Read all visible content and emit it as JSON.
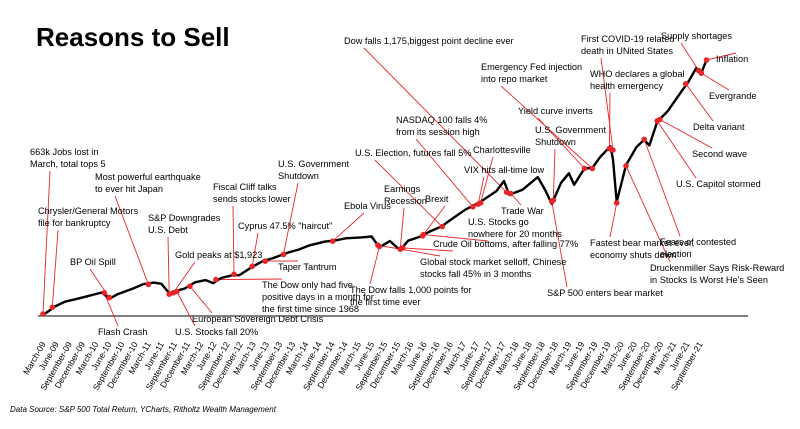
{
  "chart_data": {
    "type": "line",
    "title": "Reasons to Sell",
    "source": "Data Source: S&P 500 Total Return, YCharts, Ritholtz Wealth Management",
    "xlabel": "",
    "ylabel": "",
    "grid": false,
    "legend": "none",
    "line_color": "#000000",
    "marker_color": "#e8262a",
    "x_ticks": [
      "March-09",
      "June-09",
      "September-09",
      "December-09",
      "March-10",
      "June-10",
      "September-10",
      "December-10",
      "March-11",
      "June-11",
      "September-11",
      "December-11",
      "March-12",
      "June-12",
      "September-12",
      "December-12",
      "March-13",
      "June-13",
      "September-13",
      "December-13",
      "March-14",
      "June-14",
      "September-14",
      "December-14",
      "March-15",
      "June-15",
      "September-15",
      "December-15",
      "March-16",
      "June-16",
      "September-16",
      "December-16",
      "March-17",
      "June-17",
      "September-17",
      "December-17",
      "March-18",
      "June-18",
      "September-18",
      "December-18",
      "March-19",
      "June-19",
      "September-19",
      "December-19",
      "March-20",
      "June-20",
      "September-20",
      "December-20",
      "March-21",
      "June-21",
      "September-21"
    ],
    "series": [
      {
        "values": [
          [
            2009.2,
            1.0
          ],
          [
            2009.4,
            1.3
          ],
          [
            2009.6,
            1.5
          ],
          [
            2009.8,
            1.6
          ],
          [
            2010.0,
            1.7
          ],
          [
            2010.3,
            1.85
          ],
          [
            2010.45,
            1.6
          ],
          [
            2010.6,
            1.75
          ],
          [
            2010.9,
            1.95
          ],
          [
            2011.1,
            2.1
          ],
          [
            2011.3,
            2.15
          ],
          [
            2011.45,
            2.1
          ],
          [
            2011.6,
            1.75
          ],
          [
            2011.75,
            1.85
          ],
          [
            2011.9,
            1.95
          ],
          [
            2012.1,
            2.2
          ],
          [
            2012.3,
            2.3
          ],
          [
            2012.45,
            2.2
          ],
          [
            2012.6,
            2.4
          ],
          [
            2012.8,
            2.5
          ],
          [
            2012.95,
            2.5
          ],
          [
            2013.2,
            2.8
          ],
          [
            2013.4,
            3.0
          ],
          [
            2013.6,
            3.1
          ],
          [
            2013.9,
            3.3
          ],
          [
            2014.1,
            3.4
          ],
          [
            2014.3,
            3.55
          ],
          [
            2014.6,
            3.7
          ],
          [
            2014.8,
            3.75
          ],
          [
            2015.0,
            3.85
          ],
          [
            2015.3,
            3.9
          ],
          [
            2015.5,
            3.95
          ],
          [
            2015.65,
            3.55
          ],
          [
            2015.85,
            3.8
          ],
          [
            2016.05,
            3.45
          ],
          [
            2016.2,
            3.8
          ],
          [
            2016.45,
            3.95
          ],
          [
            2016.6,
            4.1
          ],
          [
            2016.85,
            4.3
          ],
          [
            2017.0,
            4.5
          ],
          [
            2017.3,
            4.9
          ],
          [
            2017.6,
            5.2
          ],
          [
            2017.9,
            5.6
          ],
          [
            2018.05,
            6.0
          ],
          [
            2018.15,
            5.5
          ],
          [
            2018.4,
            5.7
          ],
          [
            2018.7,
            6.2
          ],
          [
            2018.85,
            5.7
          ],
          [
            2018.97,
            5.2
          ],
          [
            2019.15,
            6.0
          ],
          [
            2019.3,
            6.35
          ],
          [
            2019.4,
            5.9
          ],
          [
            2019.6,
            6.5
          ],
          [
            2019.75,
            6.5
          ],
          [
            2019.9,
            6.9
          ],
          [
            2020.1,
            7.3
          ],
          [
            2020.15,
            6.8
          ],
          [
            2020.22,
            5.2
          ],
          [
            2020.4,
            6.6
          ],
          [
            2020.6,
            7.3
          ],
          [
            2020.75,
            7.6
          ],
          [
            2020.85,
            7.4
          ],
          [
            2021.0,
            8.3
          ],
          [
            2021.2,
            8.7
          ],
          [
            2021.45,
            9.4
          ],
          [
            2021.6,
            9.8
          ],
          [
            2021.75,
            10.3
          ],
          [
            2021.85,
            10.1
          ],
          [
            2021.95,
            10.6
          ]
        ]
      }
    ],
    "annotations": [
      {
        "lines": [
          "663k Jobs lost in",
          "March, total tops 5"
        ],
        "x": 2009.17,
        "y": 1.0
      },
      {
        "lines": [
          "Chrysler/General Motors",
          "file for bankruptcy"
        ],
        "x": 2009.35,
        "y": 1.25
      },
      {
        "lines": [
          "Flash Crash"
        ],
        "x": 2010.35,
        "y": 1.8
      },
      {
        "lines": [
          "BP Oil Spill"
        ],
        "x": 2010.45,
        "y": 1.62
      },
      {
        "lines": [
          "Most powerful earthquake",
          "to ever hit Japan"
        ],
        "x": 2011.2,
        "y": 2.12
      },
      {
        "lines": [
          "S&P Downgrades",
          "U.S. Debt"
        ],
        "x": 2011.6,
        "y": 1.75
      },
      {
        "lines": [
          "U.S. Stocks fall 20%"
        ],
        "x": 2011.75,
        "y": 1.85
      },
      {
        "lines": [
          "European Sovereign Debt Crisis"
        ],
        "x": 2012.0,
        "y": 2.05
      },
      {
        "lines": [
          "Gold peaks at $1,923"
        ],
        "x": 2011.68,
        "y": 1.8
      },
      {
        "lines": [
          "Fiscal Cliff talks",
          "sends stocks lower"
        ],
        "x": 2012.85,
        "y": 2.5
      },
      {
        "lines": [
          "The Dow only had five",
          "positive days in a month for",
          "the first time since 1968"
        ],
        "x": 2012.5,
        "y": 2.3
      },
      {
        "lines": [
          "Cyprus 47.5% \"haircut\""
        ],
        "x": 2013.2,
        "y": 2.8
      },
      {
        "lines": [
          "U.S. Government",
          "Shutdown"
        ],
        "x": 2013.8,
        "y": 3.25
      },
      {
        "lines": [
          "Taper Tantrum"
        ],
        "x": 2013.45,
        "y": 3.0
      },
      {
        "lines": [
          "Ebola Virus"
        ],
        "x": 2014.75,
        "y": 3.75
      },
      {
        "lines": [
          "The Dow falls 1,000 points for",
          "the first time ever"
        ],
        "x": 2015.65,
        "y": 3.55
      },
      {
        "lines": [
          "Global stock market selloff, Chinese",
          "stocks fall 45% in 3 months"
        ],
        "x": 2015.62,
        "y": 3.6
      },
      {
        "lines": [
          "Earnings",
          "Recession"
        ],
        "x": 2016.05,
        "y": 3.45
      },
      {
        "lines": [
          "Crude Oil bottoms, after falling 77%"
        ],
        "x": 2016.1,
        "y": 3.5
      },
      {
        "lines": [
          "Brexit"
        ],
        "x": 2016.48,
        "y": 3.95
      },
      {
        "lines": [
          "U.S. Election, futures fall 5%"
        ],
        "x": 2016.86,
        "y": 4.3
      },
      {
        "lines": [
          "U.S. Stocks go",
          "nowhere for 20 months"
        ],
        "x": 2016.5,
        "y": 4.0
      },
      {
        "lines": [
          "Charlottesville"
        ],
        "x": 2017.6,
        "y": 5.2
      },
      {
        "lines": [
          "NASDAQ 100 falls 4%",
          "from its  session high"
        ],
        "x": 2017.45,
        "y": 5.05
      },
      {
        "lines": [
          "VIX hits all-time low"
        ],
        "x": 2017.55,
        "y": 5.15
      },
      {
        "lines": [
          "Dow falls 1,175,biggest point decline ever"
        ],
        "x": 2018.1,
        "y": 5.6
      },
      {
        "lines": [
          "Trade War"
        ],
        "x": 2018.18,
        "y": 5.55
      },
      {
        "lines": [
          "Emergency Fed injection",
          "into repo market"
        ],
        "x": 2019.75,
        "y": 6.5
      },
      {
        "lines": [
          "Yield curve inverts"
        ],
        "x": 2019.6,
        "y": 6.5
      },
      {
        "lines": [
          "U.S. Government",
          "Shutdown"
        ],
        "x": 2019.0,
        "y": 5.3
      },
      {
        "lines": [
          "S&P 500 enters bear market"
        ],
        "x": 2018.97,
        "y": 5.25
      },
      {
        "lines": [
          "First COVID-19 related",
          "death in UNited States"
        ],
        "x": 2020.15,
        "y": 7.2
      },
      {
        "lines": [
          "WHO declares a global",
          "health emergency"
        ],
        "x": 2020.08,
        "y": 7.25
      },
      {
        "lines": [
          "Fastest bear market ever,",
          "economy shuts down"
        ],
        "x": 2020.22,
        "y": 5.2
      },
      {
        "lines": [
          "Supply shortages"
        ],
        "x": 2021.8,
        "y": 10.2
      },
      {
        "lines": [
          "Inflation"
        ],
        "x": 2021.95,
        "y": 10.6
      },
      {
        "lines": [
          "Evergrande"
        ],
        "x": 2021.85,
        "y": 10.1
      },
      {
        "lines": [
          "Delta variant"
        ],
        "x": 2021.55,
        "y": 9.7
      },
      {
        "lines": [
          "Second wave"
        ],
        "x": 2021.05,
        "y": 8.35
      },
      {
        "lines": [
          "U.S. Capitol stormed"
        ],
        "x": 2021.0,
        "y": 8.3
      },
      {
        "lines": [
          "Fears of contested",
          "election"
        ],
        "x": 2020.75,
        "y": 7.6
      },
      {
        "lines": [
          "Druckenmiller Says Risk-Reward",
          "in Stocks Is Worst He's Seen"
        ],
        "x": 2020.4,
        "y": 6.6
      }
    ]
  }
}
